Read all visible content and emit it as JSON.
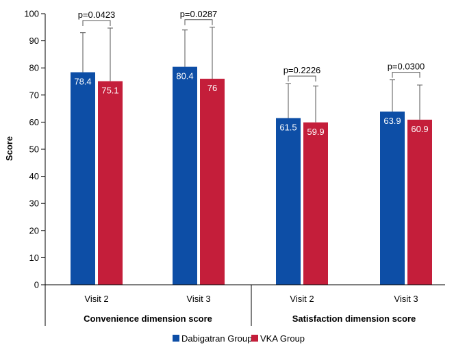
{
  "chart_data": {
    "type": "bar",
    "ylabel": "Score",
    "ylim": [
      0,
      100
    ],
    "yticks": [
      0,
      10,
      20,
      30,
      40,
      50,
      60,
      70,
      80,
      90,
      100
    ],
    "groups": [
      {
        "name": "Convenience dimension score",
        "categories": [
          {
            "label": "Visit 2",
            "values": [
              78.4,
              75.1
            ],
            "error_upper": [
              93.0,
              94.7
            ],
            "p_value": "p=0.0423"
          },
          {
            "label": "Visit 3",
            "values": [
              80.4,
              76.0
            ],
            "error_upper": [
              94.0,
              95.0
            ],
            "p_value": "p=0.0287"
          }
        ]
      },
      {
        "name": "Satisfaction dimension score",
        "categories": [
          {
            "label": "Visit 2",
            "values": [
              61.5,
              59.9
            ],
            "error_upper": [
              74.2,
              73.3
            ],
            "p_value": "p=0.2226"
          },
          {
            "label": "Visit 3",
            "values": [
              63.9,
              60.9
            ],
            "error_upper": [
              75.6,
              73.7
            ],
            "p_value": "p=0.0300"
          }
        ]
      }
    ],
    "series": [
      {
        "name": "Dabigatran Group",
        "color": "#0d4ea6"
      },
      {
        "name": "VKA Group",
        "color": "#c41e3a"
      }
    ],
    "grid": false,
    "legend_position": "bottom-center"
  }
}
